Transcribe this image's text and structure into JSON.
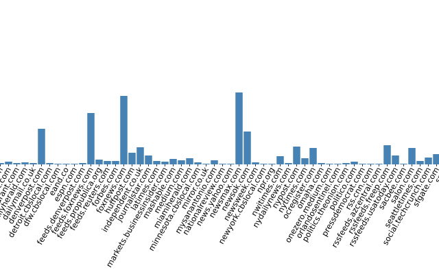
{
  "chart_data": {
    "type": "bar",
    "title": "",
    "xlabel": "",
    "ylabel": "",
    "ylim": [
      0,
      240
    ],
    "color": "#4682b4",
    "categories": [
      "....com",
      "cnbc.com",
      "cnet.com",
      "courant.com",
      "dailyherald.com",
      "dailymail.co.uk",
      "denverpost.com",
      "detroit.cbslocal.com",
      "dfw.cbslocal.com",
      "eand.co",
      "espn.com",
      "feeds.denverpost.com",
      "feeds.foxnews.com",
      "feeds.propublica.org",
      "feeds.reuters.com",
      "forbes.com",
      "foxnews.com",
      "huffpost.com",
      "independent.co.uk",
      "journalstar.com",
      "latimes.com",
      "markets.businessinsider.com",
      "mashable.com",
      "medium.com",
      "miamiherald.com",
      "minnesota.cbslocal.com",
      "mirror.co.uk",
      "mysanantonio.com",
      "nationalreview.com",
      "news.yahoo.com",
      "newsmax.com",
      "newsok.com",
      "newsweek.com",
      "newyork.cbslocal.com",
      "npr.org",
      "nwitimes.com",
      "nydailynews.com",
      "nypost.com",
      "nytimes.com",
      "ocregister.com",
      "omaha.com",
      "onezero.medium.com",
      "orlandosentinel.com",
      "politics.theonion.com",
      "politico.com",
      "pressdemocrat.com",
      "rss.cnn.com",
      "rssfeeds.azcentral.com",
      "rssfeeds.freep.com",
      "rssfeeds.usatoday.com",
      "sacbee.com",
      "salon.com",
      "seattletimes.com",
      "social.techcrunch.com",
      "sfgate.com",
      "sp..."
    ],
    "values": [
      8,
      2,
      4,
      2,
      3,
      2,
      52,
      2,
      1,
      1,
      1,
      2,
      75,
      7,
      5,
      5,
      100,
      17,
      25,
      13,
      5,
      4,
      8,
      6,
      9,
      3,
      1,
      6,
      1,
      1,
      105,
      48,
      3,
      1,
      1,
      12,
      2,
      26,
      9,
      24,
      2,
      1,
      1,
      2,
      4,
      1,
      1,
      1,
      28,
      13,
      1,
      24,
      5,
      10,
      15,
      18
    ]
  }
}
